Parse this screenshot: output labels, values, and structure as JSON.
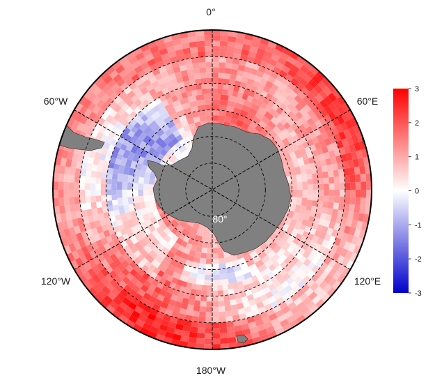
{
  "map": {
    "projection": "south-polar-stereographic",
    "ocean_fill": "#fdfbfb",
    "land_color": "#808080",
    "outline_color": "#000000",
    "graticule_style": "dashed black",
    "longitude_labels": [
      {
        "lon": 0,
        "text": "0°"
      },
      {
        "lon": -60,
        "text": "60°W"
      },
      {
        "lon": 60,
        "text": "60°E"
      },
      {
        "lon": -120,
        "text": "120°W"
      },
      {
        "lon": 120,
        "text": "120°E"
      },
      {
        "lon": 180,
        "text": "180°W"
      }
    ],
    "latitude_label": {
      "lat": -80,
      "text": "80°"
    },
    "graticule_latitudes": [
      -80,
      -70,
      -60,
      -50,
      -40
    ],
    "graticule_longitudes": [
      0,
      30,
      60,
      90,
      120,
      150,
      180,
      210,
      240,
      270,
      300,
      330
    ]
  },
  "colorbar": {
    "min": -3,
    "max": 3,
    "ticks": [
      "3",
      "2",
      "1",
      "0",
      "-1",
      "-2",
      "-3"
    ],
    "colors": [
      "#0000cc",
      "#ffffff",
      "#ff0000"
    ]
  }
}
